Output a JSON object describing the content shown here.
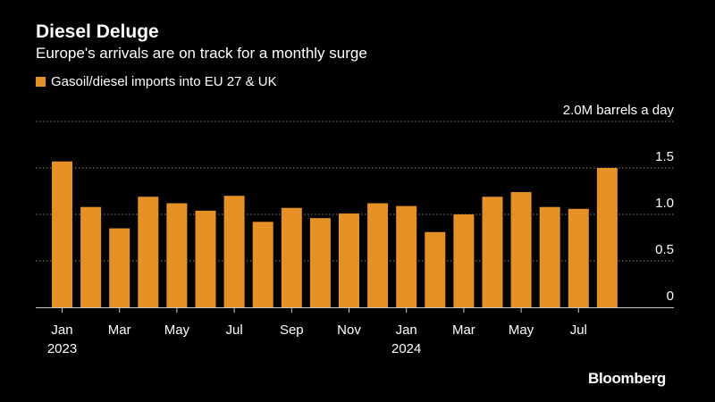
{
  "header": {
    "title": "Diesel Deluge",
    "subtitle": "Europe's arrivals are on track for a monthly surge"
  },
  "brand": "Bloomberg",
  "colors": {
    "bar": "#e69126",
    "grid": "#8a8a8a",
    "axis": "#c8c8c8",
    "text": "#ffffff",
    "background": "#000000"
  },
  "chart_data": {
    "type": "bar",
    "title": "Diesel Deluge",
    "subtitle": "Europe's arrivals are on track for a monthly surge",
    "legend": [
      "Gasoil/diesel imports into EU 27 & UK"
    ],
    "ylabel": "barrels a day",
    "ylim": [
      0,
      2.0
    ],
    "ytick_labels": [
      {
        "value": 0,
        "label": "0"
      },
      {
        "value": 0.5,
        "label": "0.5"
      },
      {
        "value": 1.0,
        "label": "1.0"
      },
      {
        "value": 1.5,
        "label": "1.5"
      },
      {
        "value": 2.0,
        "label": "2.0M barrels a day"
      }
    ],
    "grid": true,
    "categories": [
      "Jan 2023",
      "Feb 2023",
      "Mar 2023",
      "Apr 2023",
      "May 2023",
      "Jun 2023",
      "Jul 2023",
      "Aug 2023",
      "Sep 2023",
      "Oct 2023",
      "Nov 2023",
      "Dec 2023",
      "Jan 2024",
      "Feb 2024",
      "Mar 2024",
      "Apr 2024",
      "May 2024",
      "Jun 2024",
      "Jul 2024",
      "Aug 2024"
    ],
    "series": [
      {
        "name": "Gasoil/diesel imports into EU 27 & UK",
        "values": [
          1.57,
          1.08,
          0.85,
          1.19,
          1.12,
          1.04,
          1.2,
          0.92,
          1.07,
          0.96,
          1.01,
          1.12,
          1.09,
          0.81,
          1.0,
          1.19,
          1.24,
          1.08,
          1.06,
          1.5
        ]
      }
    ],
    "xtick_labels": [
      {
        "index": 0,
        "month": "Jan",
        "year": "2023"
      },
      {
        "index": 2,
        "month": "Mar",
        "year": ""
      },
      {
        "index": 4,
        "month": "May",
        "year": ""
      },
      {
        "index": 6,
        "month": "Jul",
        "year": ""
      },
      {
        "index": 8,
        "month": "Sep",
        "year": ""
      },
      {
        "index": 10,
        "month": "Nov",
        "year": ""
      },
      {
        "index": 12,
        "month": "Jan",
        "year": "2024"
      },
      {
        "index": 14,
        "month": "Mar",
        "year": ""
      },
      {
        "index": 16,
        "month": "May",
        "year": ""
      },
      {
        "index": 18,
        "month": "Jul",
        "year": ""
      }
    ]
  }
}
